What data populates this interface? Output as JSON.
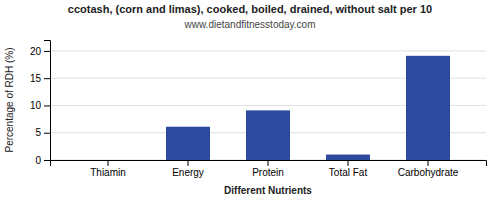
{
  "chart_data": {
    "type": "bar",
    "title": "ccotash, (corn and limas), cooked, boiled, drained, without salt per 10",
    "subtitle": "www.dietandfitnesstoday.com",
    "categories": [
      "Thiamin",
      "Energy",
      "Protein",
      "Total Fat",
      "Carbohydrate"
    ],
    "values": [
      0,
      6.1,
      9.1,
      1.0,
      19.1
    ],
    "color": "#2e4a9e",
    "xlabel": "Different Nutrients",
    "ylabel": "Percentage of RDH (%)",
    "ylim": [
      0,
      22
    ],
    "yticks": [
      0,
      5,
      10,
      15,
      20
    ],
    "grid": true
  }
}
